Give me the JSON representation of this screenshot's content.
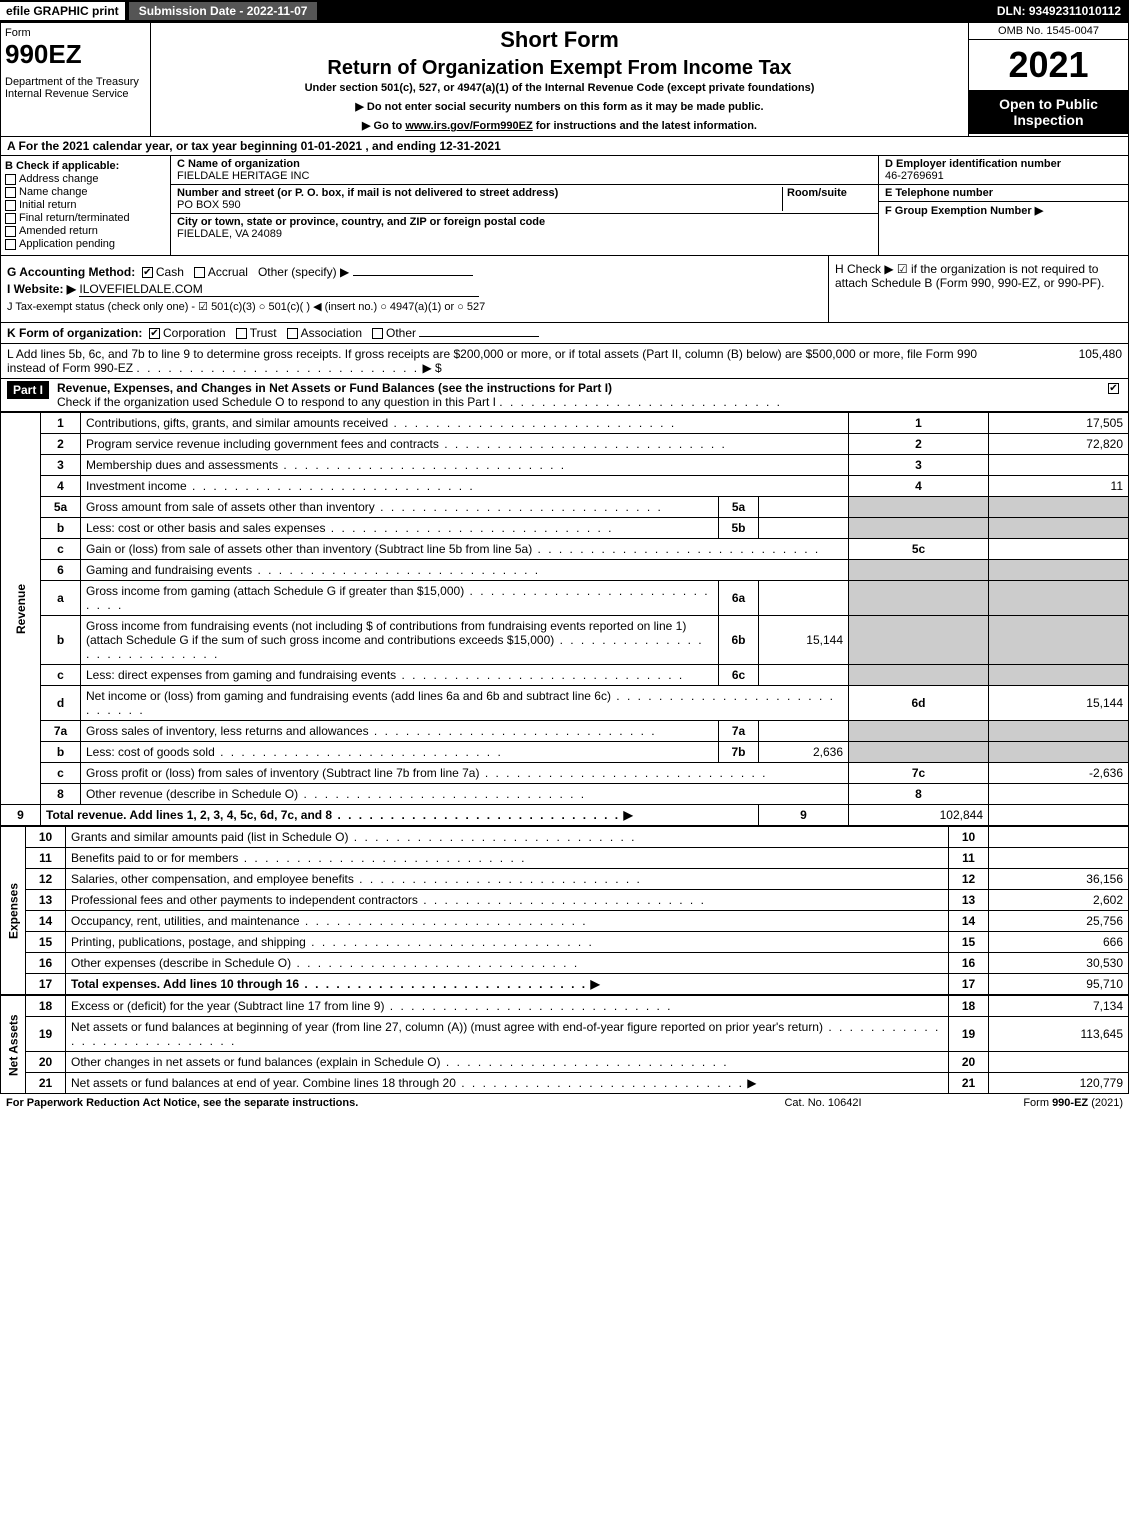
{
  "topbar": {
    "efile": "efile GRAPHIC print",
    "submission": "Submission Date - 2022-11-07",
    "dln": "DLN: 93492311010112"
  },
  "header": {
    "form_label": "Form",
    "form_number": "990EZ",
    "dept": "Department of the Treasury\nInternal Revenue Service",
    "short": "Short Form",
    "title": "Return of Organization Exempt From Income Tax",
    "subtitle": "Under section 501(c), 527, or 4947(a)(1) of the Internal Revenue Code (except private foundations)",
    "note1": "▶ Do not enter social security numbers on this form as it may be made public.",
    "note2": "▶ Go to www.irs.gov/Form990EZ for instructions and the latest information.",
    "omb": "OMB No. 1545-0047",
    "year": "2021",
    "inspect": "Open to Public Inspection"
  },
  "rowA": "A  For the 2021 calendar year, or tax year beginning 01-01-2021 , and ending 12-31-2021",
  "colB": {
    "hdr": "B  Check if applicable:",
    "opts": [
      "Address change",
      "Name change",
      "Initial return",
      "Final return/terminated",
      "Amended return",
      "Application pending"
    ]
  },
  "colC": {
    "name_lbl": "C Name of organization",
    "name": "FIELDALE HERITAGE INC",
    "addr_lbl": "Number and street (or P. O. box, if mail is not delivered to street address)",
    "room_lbl": "Room/suite",
    "addr": "PO BOX 590",
    "city_lbl": "City or town, state or province, country, and ZIP or foreign postal code",
    "city": "FIELDALE, VA  24089"
  },
  "colDEF": {
    "d_lbl": "D Employer identification number",
    "d_val": "46-2769691",
    "e_lbl": "E Telephone number",
    "e_val": "",
    "f_lbl": "F Group Exemption Number  ▶",
    "f_val": ""
  },
  "rowG": {
    "label": "G Accounting Method:",
    "cash": "Cash",
    "accrual": "Accrual",
    "other": "Other (specify) ▶",
    "cash_checked": true
  },
  "rowH": "H  Check ▶  ☑  if the organization is not required to attach Schedule B (Form 990, 990-EZ, or 990-PF).",
  "rowI": {
    "label": "I Website: ▶",
    "val": "ILOVEFIELDALE.COM"
  },
  "rowJ": "J Tax-exempt status (check only one) - ☑ 501(c)(3)  ○ 501(c)(  ) ◀ (insert no.)  ○ 4947(a)(1) or  ○ 527",
  "rowK": {
    "label": "K Form of organization:",
    "corp": "Corporation",
    "trust": "Trust",
    "assoc": "Association",
    "other": "Other",
    "corp_checked": true
  },
  "rowL": {
    "text": "L Add lines 5b, 6c, and 7b to line 9 to determine gross receipts. If gross receipts are $200,000 or more, or if total assets (Part II, column (B) below) are $500,000 or more, file Form 990 instead of Form 990-EZ",
    "arrow": "▶ $",
    "amount": "105,480"
  },
  "part1": {
    "label": "Part I",
    "title": "Revenue, Expenses, and Changes in Net Assets or Fund Balances (see the instructions for Part I)",
    "check": "Check if the organization used Schedule O to respond to any question in this Part I",
    "checked": true
  },
  "sections": {
    "revenue": "Revenue",
    "expenses": "Expenses",
    "netassets": "Net Assets"
  },
  "lines": [
    {
      "n": "1",
      "desc": "Contributions, gifts, grants, and similar amounts received",
      "r": "1",
      "amt": "17,505"
    },
    {
      "n": "2",
      "desc": "Program service revenue including government fees and contracts",
      "r": "2",
      "amt": "72,820"
    },
    {
      "n": "3",
      "desc": "Membership dues and assessments",
      "r": "3",
      "amt": ""
    },
    {
      "n": "4",
      "desc": "Investment income",
      "r": "4",
      "amt": "11"
    },
    {
      "n": "5a",
      "desc": "Gross amount from sale of assets other than inventory",
      "box": "5a",
      "boxval": "",
      "shade": true
    },
    {
      "n": "b",
      "desc": "Less: cost or other basis and sales expenses",
      "box": "5b",
      "boxval": "",
      "shade": true
    },
    {
      "n": "c",
      "desc": "Gain or (loss) from sale of assets other than inventory (Subtract line 5b from line 5a)",
      "r": "5c",
      "amt": ""
    },
    {
      "n": "6",
      "desc": "Gaming and fundraising events",
      "shade": true
    },
    {
      "n": "a",
      "desc": "Gross income from gaming (attach Schedule G if greater than $15,000)",
      "box": "6a",
      "boxval": "",
      "shade": true
    },
    {
      "n": "b",
      "desc": "Gross income from fundraising events (not including $                       of contributions from fundraising events reported on line 1) (attach Schedule G if the sum of such gross income and contributions exceeds $15,000)",
      "box": "6b",
      "boxval": "15,144",
      "shade": true
    },
    {
      "n": "c",
      "desc": "Less: direct expenses from gaming and fundraising events",
      "box": "6c",
      "boxval": "",
      "shade": true
    },
    {
      "n": "d",
      "desc": "Net income or (loss) from gaming and fundraising events (add lines 6a and 6b and subtract line 6c)",
      "r": "6d",
      "amt": "15,144"
    },
    {
      "n": "7a",
      "desc": "Gross sales of inventory, less returns and allowances",
      "box": "7a",
      "boxval": "",
      "shade": true
    },
    {
      "n": "b",
      "desc": "Less: cost of goods sold",
      "box": "7b",
      "boxval": "2,636",
      "shade": true
    },
    {
      "n": "c",
      "desc": "Gross profit or (loss) from sales of inventory (Subtract line 7b from line 7a)",
      "r": "7c",
      "amt": "-2,636"
    },
    {
      "n": "8",
      "desc": "Other revenue (describe in Schedule O)",
      "r": "8",
      "amt": ""
    },
    {
      "n": "9",
      "desc": "Total revenue. Add lines 1, 2, 3, 4, 5c, 6d, 7c, and 8",
      "r": "9",
      "amt": "102,844",
      "bold": true,
      "arrow": true
    }
  ],
  "exp_lines": [
    {
      "n": "10",
      "desc": "Grants and similar amounts paid (list in Schedule O)",
      "r": "10",
      "amt": ""
    },
    {
      "n": "11",
      "desc": "Benefits paid to or for members",
      "r": "11",
      "amt": ""
    },
    {
      "n": "12",
      "desc": "Salaries, other compensation, and employee benefits",
      "r": "12",
      "amt": "36,156"
    },
    {
      "n": "13",
      "desc": "Professional fees and other payments to independent contractors",
      "r": "13",
      "amt": "2,602"
    },
    {
      "n": "14",
      "desc": "Occupancy, rent, utilities, and maintenance",
      "r": "14",
      "amt": "25,756"
    },
    {
      "n": "15",
      "desc": "Printing, publications, postage, and shipping",
      "r": "15",
      "amt": "666"
    },
    {
      "n": "16",
      "desc": "Other expenses (describe in Schedule O)",
      "r": "16",
      "amt": "30,530"
    },
    {
      "n": "17",
      "desc": "Total expenses. Add lines 10 through 16",
      "r": "17",
      "amt": "95,710",
      "bold": true,
      "arrow": true
    }
  ],
  "na_lines": [
    {
      "n": "18",
      "desc": "Excess or (deficit) for the year (Subtract line 17 from line 9)",
      "r": "18",
      "amt": "7,134"
    },
    {
      "n": "19",
      "desc": "Net assets or fund balances at beginning of year (from line 27, column (A)) (must agree with end-of-year figure reported on prior year's return)",
      "r": "19",
      "amt": "113,645"
    },
    {
      "n": "20",
      "desc": "Other changes in net assets or fund balances (explain in Schedule O)",
      "r": "20",
      "amt": ""
    },
    {
      "n": "21",
      "desc": "Net assets or fund balances at end of year. Combine lines 18 through 20",
      "r": "21",
      "amt": "120,779",
      "arrow": true
    }
  ],
  "footer": {
    "left": "For Paperwork Reduction Act Notice, see the separate instructions.",
    "center": "Cat. No. 10642I",
    "right": "Form 990-EZ (2021)"
  }
}
